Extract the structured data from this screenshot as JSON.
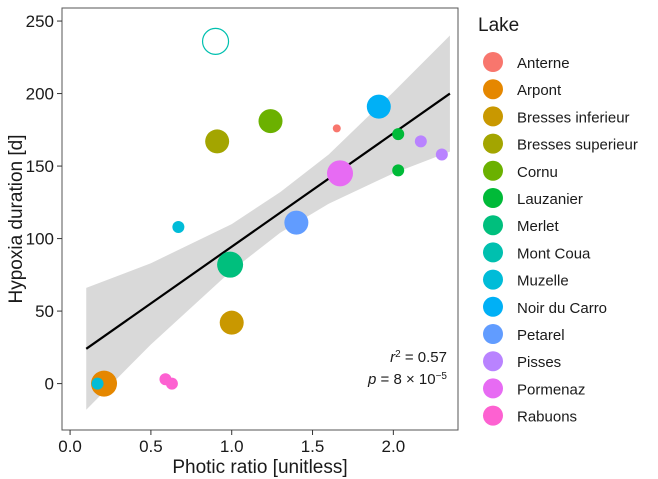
{
  "chart_data": {
    "type": "scatter",
    "xlabel": "Photic ratio [unitless]",
    "ylabel": "Hypoxia duration [d]",
    "legend_title": "Lake",
    "xlim": [
      -0.05,
      2.4
    ],
    "ylim": [
      -32,
      259
    ],
    "xticks": [
      {
        "value": 0,
        "label": "0.0"
      },
      {
        "value": 0.5,
        "label": "0.5"
      },
      {
        "value": 1,
        "label": "1.0"
      },
      {
        "value": 1.5,
        "label": "1.5"
      },
      {
        "value": 2,
        "label": "2.0"
      }
    ],
    "yticks": [
      0,
      50,
      100,
      150,
      200,
      250
    ],
    "grid": false,
    "series": [
      {
        "name": "Anterne",
        "color": "#F8766D",
        "x": [
          1.65
        ],
        "values": [
          176
        ],
        "sizes": [
          4
        ]
      },
      {
        "name": "Arpont",
        "color": "#E58700",
        "x": [
          0.21
        ],
        "values": [
          0
        ],
        "sizes": [
          13
        ]
      },
      {
        "name": "Bresses inferieur",
        "color": "#C99800",
        "x": [
          1.0
        ],
        "values": [
          42
        ],
        "sizes": [
          12
        ]
      },
      {
        "name": "Bresses superieur",
        "color": "#A3A500",
        "x": [
          0.91
        ],
        "values": [
          167
        ],
        "sizes": [
          12
        ]
      },
      {
        "name": "Cornu",
        "color": "#6BB100",
        "x": [
          1.24
        ],
        "values": [
          181
        ],
        "sizes": [
          12
        ]
      },
      {
        "name": "Lauzanier",
        "color": "#00BA38",
        "x": [
          2.03,
          2.03
        ],
        "values": [
          172,
          147
        ],
        "sizes": [
          6,
          6
        ]
      },
      {
        "name": "Merlet",
        "color": "#00BF7D",
        "x": [
          0.99
        ],
        "values": [
          82
        ],
        "sizes": [
          13
        ]
      },
      {
        "name": "Mont Coua",
        "color": "#00C0AF",
        "x": [
          0.9
        ],
        "values": [
          236
        ],
        "sizes": [
          13
        ],
        "hollow": true
      },
      {
        "name": "Muzelle",
        "color": "#00BCD8",
        "x": [
          0.67,
          0.17
        ],
        "values": [
          108,
          0
        ],
        "sizes": [
          6,
          6
        ]
      },
      {
        "name": "Noir du Carro",
        "color": "#00B0F6",
        "x": [
          1.91
        ],
        "values": [
          191
        ],
        "sizes": [
          12
        ]
      },
      {
        "name": "Petarel",
        "color": "#619CFF",
        "x": [
          1.4
        ],
        "values": [
          111
        ],
        "sizes": [
          12
        ]
      },
      {
        "name": "Pisses",
        "color": "#B983FF",
        "x": [
          2.17,
          2.3
        ],
        "values": [
          167,
          158
        ],
        "sizes": [
          6,
          6
        ]
      },
      {
        "name": "Pormenaz",
        "color": "#E76BF3",
        "x": [
          1.67
        ],
        "values": [
          145
        ],
        "sizes": [
          13
        ]
      },
      {
        "name": "Rabuons",
        "color": "#FD61D1",
        "x": [
          0.59,
          0.63
        ],
        "values": [
          3,
          0
        ],
        "sizes": [
          6,
          6
        ]
      }
    ],
    "fit": {
      "color": "#000000",
      "x": [
        0.1,
        2.35
      ],
      "values": [
        24,
        200
      ]
    },
    "band": {
      "color": "#D9D9D9",
      "x": [
        0.1,
        0.5,
        1.0,
        1.3,
        1.6,
        2.0,
        2.35
      ],
      "lower": [
        -18,
        27,
        78,
        104,
        124,
        145,
        160
      ],
      "upper": [
        66,
        83,
        110,
        132,
        158,
        201,
        240
      ]
    },
    "annotations": [
      [
        "r",
        "2",
        " = 0.57"
      ],
      [
        "p",
        " = 8 × 10",
        "−5"
      ]
    ]
  }
}
